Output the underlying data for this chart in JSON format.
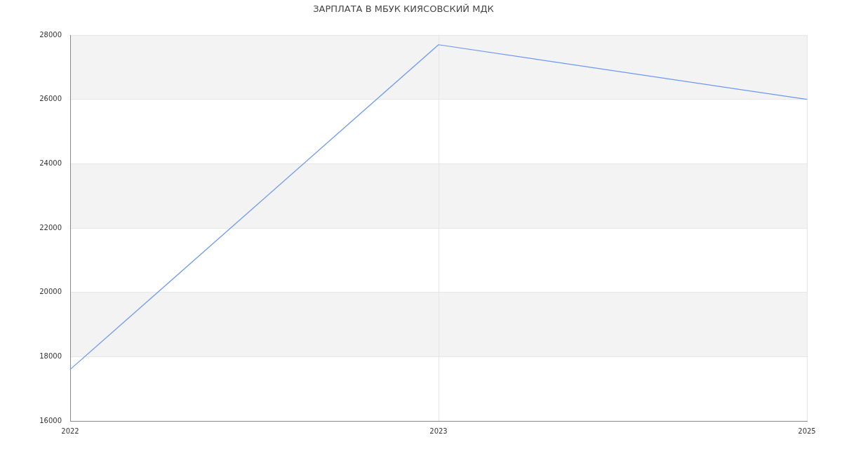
{
  "chart_data": {
    "type": "line",
    "title": "ЗАРПЛАТА В МБУК КИЯСОВСКИЙ МДК",
    "categories": [
      "2022",
      "2023",
      "2025"
    ],
    "series": [
      {
        "color": "#6b97f0",
        "values": [
          17600,
          27700,
          26000
        ]
      }
    ],
    "ylim": [
      16000,
      28000
    ],
    "yticks": [
      16000,
      18000,
      20000,
      22000,
      24000,
      26000,
      28000
    ],
    "grid": true,
    "marker": "none",
    "line_style": "solid",
    "bands": [
      {
        "axis": "y",
        "from": 18000,
        "to": 20000,
        "color": "#f3f3f3"
      },
      {
        "axis": "y",
        "from": 22000,
        "to": 24000,
        "color": "#f3f3f3"
      },
      {
        "axis": "y",
        "from": 26000,
        "to": 28000,
        "color": "#f3f3f3"
      }
    ]
  }
}
